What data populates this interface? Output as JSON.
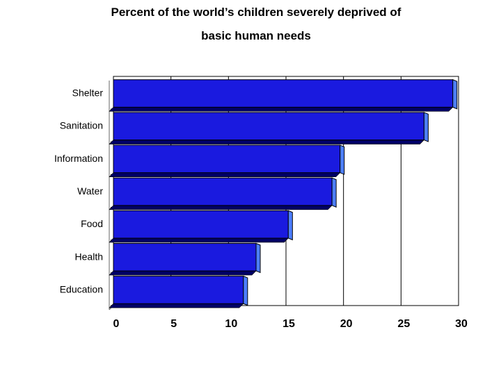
{
  "chart_data": {
    "type": "bar",
    "orientation": "horizontal",
    "title_lines": [
      "Percent of the world’s children severely deprived of",
      "basic human needs"
    ],
    "categories": [
      "Shelter",
      "Sanitation",
      "Information",
      "Water",
      "Food",
      "Health",
      "Education"
    ],
    "values": [
      29.5,
      27,
      19.7,
      19,
      15.2,
      12.4,
      11.3
    ],
    "xlabel": "",
    "ylabel": "",
    "xlim": [
      0,
      30
    ],
    "xticks": [
      "0",
      "5",
      "10",
      "15",
      "20",
      "25",
      "30"
    ],
    "grid": "vertical",
    "legend": "none",
    "colors": {
      "bar_front": "#1a1adf",
      "bar_side": "#4d7fff",
      "bar_edge": "#000000",
      "grid": "#000000"
    }
  }
}
